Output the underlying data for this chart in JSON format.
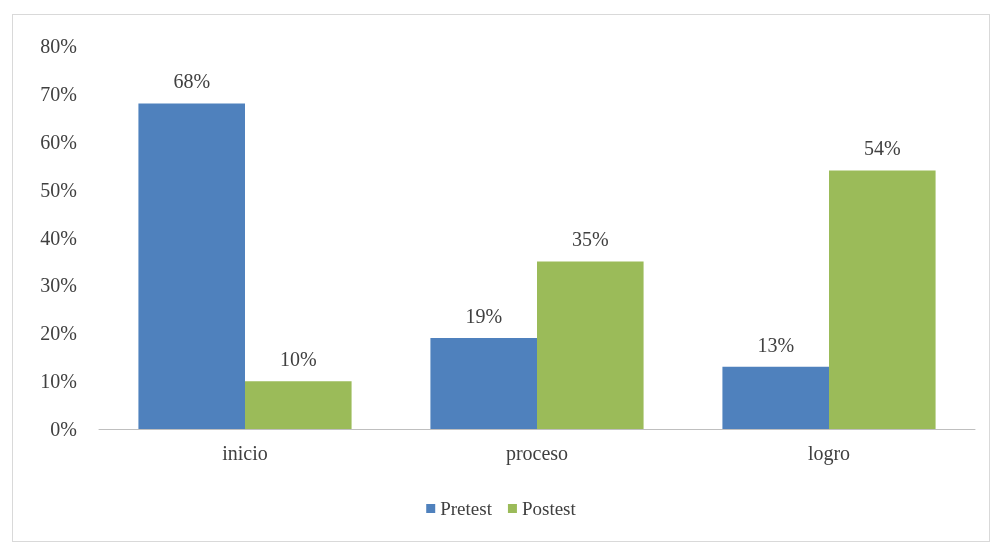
{
  "chart_data": {
    "type": "bar",
    "categories": [
      "inicio",
      "proceso",
      "logro"
    ],
    "series": [
      {
        "name": "Pretest",
        "color": "#4f81bd",
        "values": [
          68,
          19,
          13
        ],
        "value_labels": [
          "68%",
          "19%",
          "13%"
        ]
      },
      {
        "name": "Postest",
        "color": "#9bbb59",
        "values": [
          10,
          35,
          54
        ],
        "value_labels": [
          "10%",
          "35%",
          "54%"
        ]
      }
    ],
    "ylim": [
      0,
      80
    ],
    "yticks": [
      {
        "value": 0,
        "label": "0%"
      },
      {
        "value": 10,
        "label": "10%"
      },
      {
        "value": 20,
        "label": "20%"
      },
      {
        "value": 30,
        "label": "30%"
      },
      {
        "value": 40,
        "label": "40%"
      },
      {
        "value": 50,
        "label": "50%"
      },
      {
        "value": 60,
        "label": "60%"
      },
      {
        "value": 70,
        "label": "70%"
      },
      {
        "value": 80,
        "label": "80%"
      }
    ],
    "grid": false,
    "legend": "bottom"
  }
}
